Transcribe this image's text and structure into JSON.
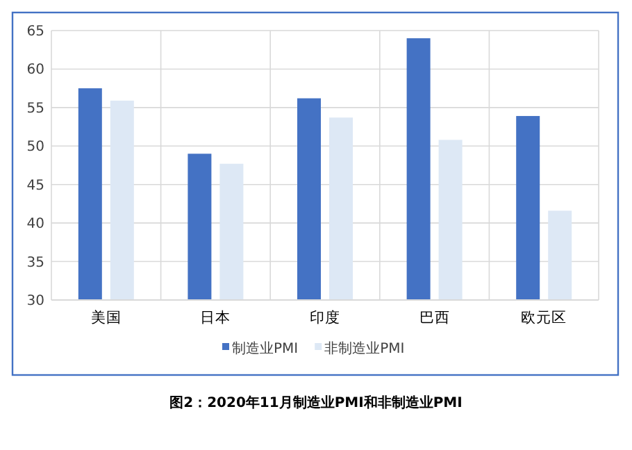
{
  "chart_data": {
    "type": "bar",
    "title": "图2：2020年11月制造业PMI和非制造业PMI",
    "categories": [
      "美国",
      "日本",
      "印度",
      "巴西",
      "欧元区"
    ],
    "series": [
      {
        "name": "制造业PMI",
        "color": "#4472c4",
        "values": [
          57.5,
          49.0,
          56.2,
          64.0,
          53.9
        ]
      },
      {
        "name": "非制造业PMI",
        "color": "#dde8f5",
        "values": [
          55.9,
          47.7,
          53.7,
          50.8,
          41.6
        ]
      }
    ],
    "ylim": [
      30,
      65
    ],
    "yticks": [
      30,
      35,
      40,
      45,
      50,
      55,
      60,
      65
    ],
    "grid": true,
    "legend": "bottom"
  }
}
